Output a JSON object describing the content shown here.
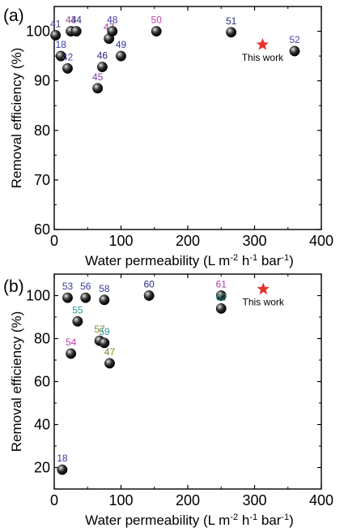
{
  "chart_data": [
    {
      "panel_label": "(a)",
      "type": "scatter",
      "xlabel_main": "Water permeability (L m",
      "xlabel_sup1": "-2",
      "xlabel_mid1": " h",
      "xlabel_sup2": "-1",
      "xlabel_mid2": " bar",
      "xlabel_sup3": "-1",
      "xlabel_end": ")",
      "ylabel": "Removal efficiency (%)",
      "xlim": [
        0,
        400
      ],
      "ylim": [
        60,
        105
      ],
      "xticks": [
        0,
        100,
        200,
        300,
        400
      ],
      "yticks": [
        60,
        70,
        80,
        90,
        100
      ],
      "points": [
        {
          "x": 2,
          "y": 99.2,
          "label": "41",
          "color": "#3a3aa0"
        },
        {
          "x": 10,
          "y": 95,
          "label": "18",
          "color": "#3a3aa0"
        },
        {
          "x": 20,
          "y": 92.5,
          "label": "42",
          "color": "#5a3aa0"
        },
        {
          "x": 25,
          "y": 100,
          "label": "43",
          "color": "#a040a0"
        },
        {
          "x": 33,
          "y": 100,
          "label": "44",
          "color": "#2a2a80"
        },
        {
          "x": 65,
          "y": 88.5,
          "label": "45",
          "color": "#7a3aa0"
        },
        {
          "x": 72,
          "y": 92.8,
          "label": "46",
          "color": "#2a2a80"
        },
        {
          "x": 82,
          "y": 98.5,
          "label": "47",
          "color": "#a040a0"
        },
        {
          "x": 87,
          "y": 100,
          "label": "48",
          "color": "#3a3aa0"
        },
        {
          "x": 100,
          "y": 95,
          "label": "49",
          "color": "#3a3aa0"
        },
        {
          "x": 153,
          "y": 100,
          "label": "50",
          "color": "#c040b0"
        },
        {
          "x": 265,
          "y": 99.8,
          "label": "51",
          "color": "#2a2a80"
        },
        {
          "x": 360,
          "y": 96,
          "label": "52",
          "color": "#5a3aa0"
        }
      ],
      "this_work": {
        "x": 312,
        "y": 97.3,
        "label": "This work",
        "color": "#e8322e"
      }
    },
    {
      "panel_label": "(b)",
      "type": "scatter",
      "xlabel_main": "Water permeability (L m",
      "xlabel_sup1": "-2",
      "xlabel_mid1": " h",
      "xlabel_sup2": "-1",
      "xlabel_mid2": " bar",
      "xlabel_sup3": "-1",
      "xlabel_end": ")",
      "ylabel": "Removal efficiency (%)",
      "xlim": [
        0,
        400
      ],
      "ylim": [
        10,
        110
      ],
      "xticks": [
        0,
        100,
        200,
        300,
        400
      ],
      "yticks": [
        20,
        40,
        60,
        80,
        100
      ],
      "points": [
        {
          "x": 12,
          "y": 19,
          "label": "18",
          "color": "#3a3aa0"
        },
        {
          "x": 20,
          "y": 99,
          "label": "53",
          "color": "#3a3aa0"
        },
        {
          "x": 25,
          "y": 73,
          "label": "54",
          "color": "#c040b0"
        },
        {
          "x": 35,
          "y": 88,
          "label": "55",
          "color": "#2a9a9a"
        },
        {
          "x": 47,
          "y": 99,
          "label": "56",
          "color": "#3a3aa0"
        },
        {
          "x": 68,
          "y": 79,
          "label": "57",
          "color": "#8a8a20"
        },
        {
          "x": 75,
          "y": 78,
          "label": "59",
          "color": "#2a9a9a"
        },
        {
          "x": 75,
          "y": 98,
          "label": "58",
          "color": "#3a3aa0"
        },
        {
          "x": 83,
          "y": 68.5,
          "label": "47",
          "color": "#8a8a20"
        },
        {
          "x": 142,
          "y": 100,
          "label": "60",
          "color": "#2a2a80"
        },
        {
          "x": 250,
          "y": 100,
          "label": "61",
          "color": "#a040a0"
        },
        {
          "x": 250,
          "y": 94,
          "label": "62",
          "color": "#2a9a9a"
        }
      ],
      "this_work": {
        "x": 313,
        "y": 103,
        "label": "This work",
        "color": "#e8322e"
      }
    }
  ]
}
